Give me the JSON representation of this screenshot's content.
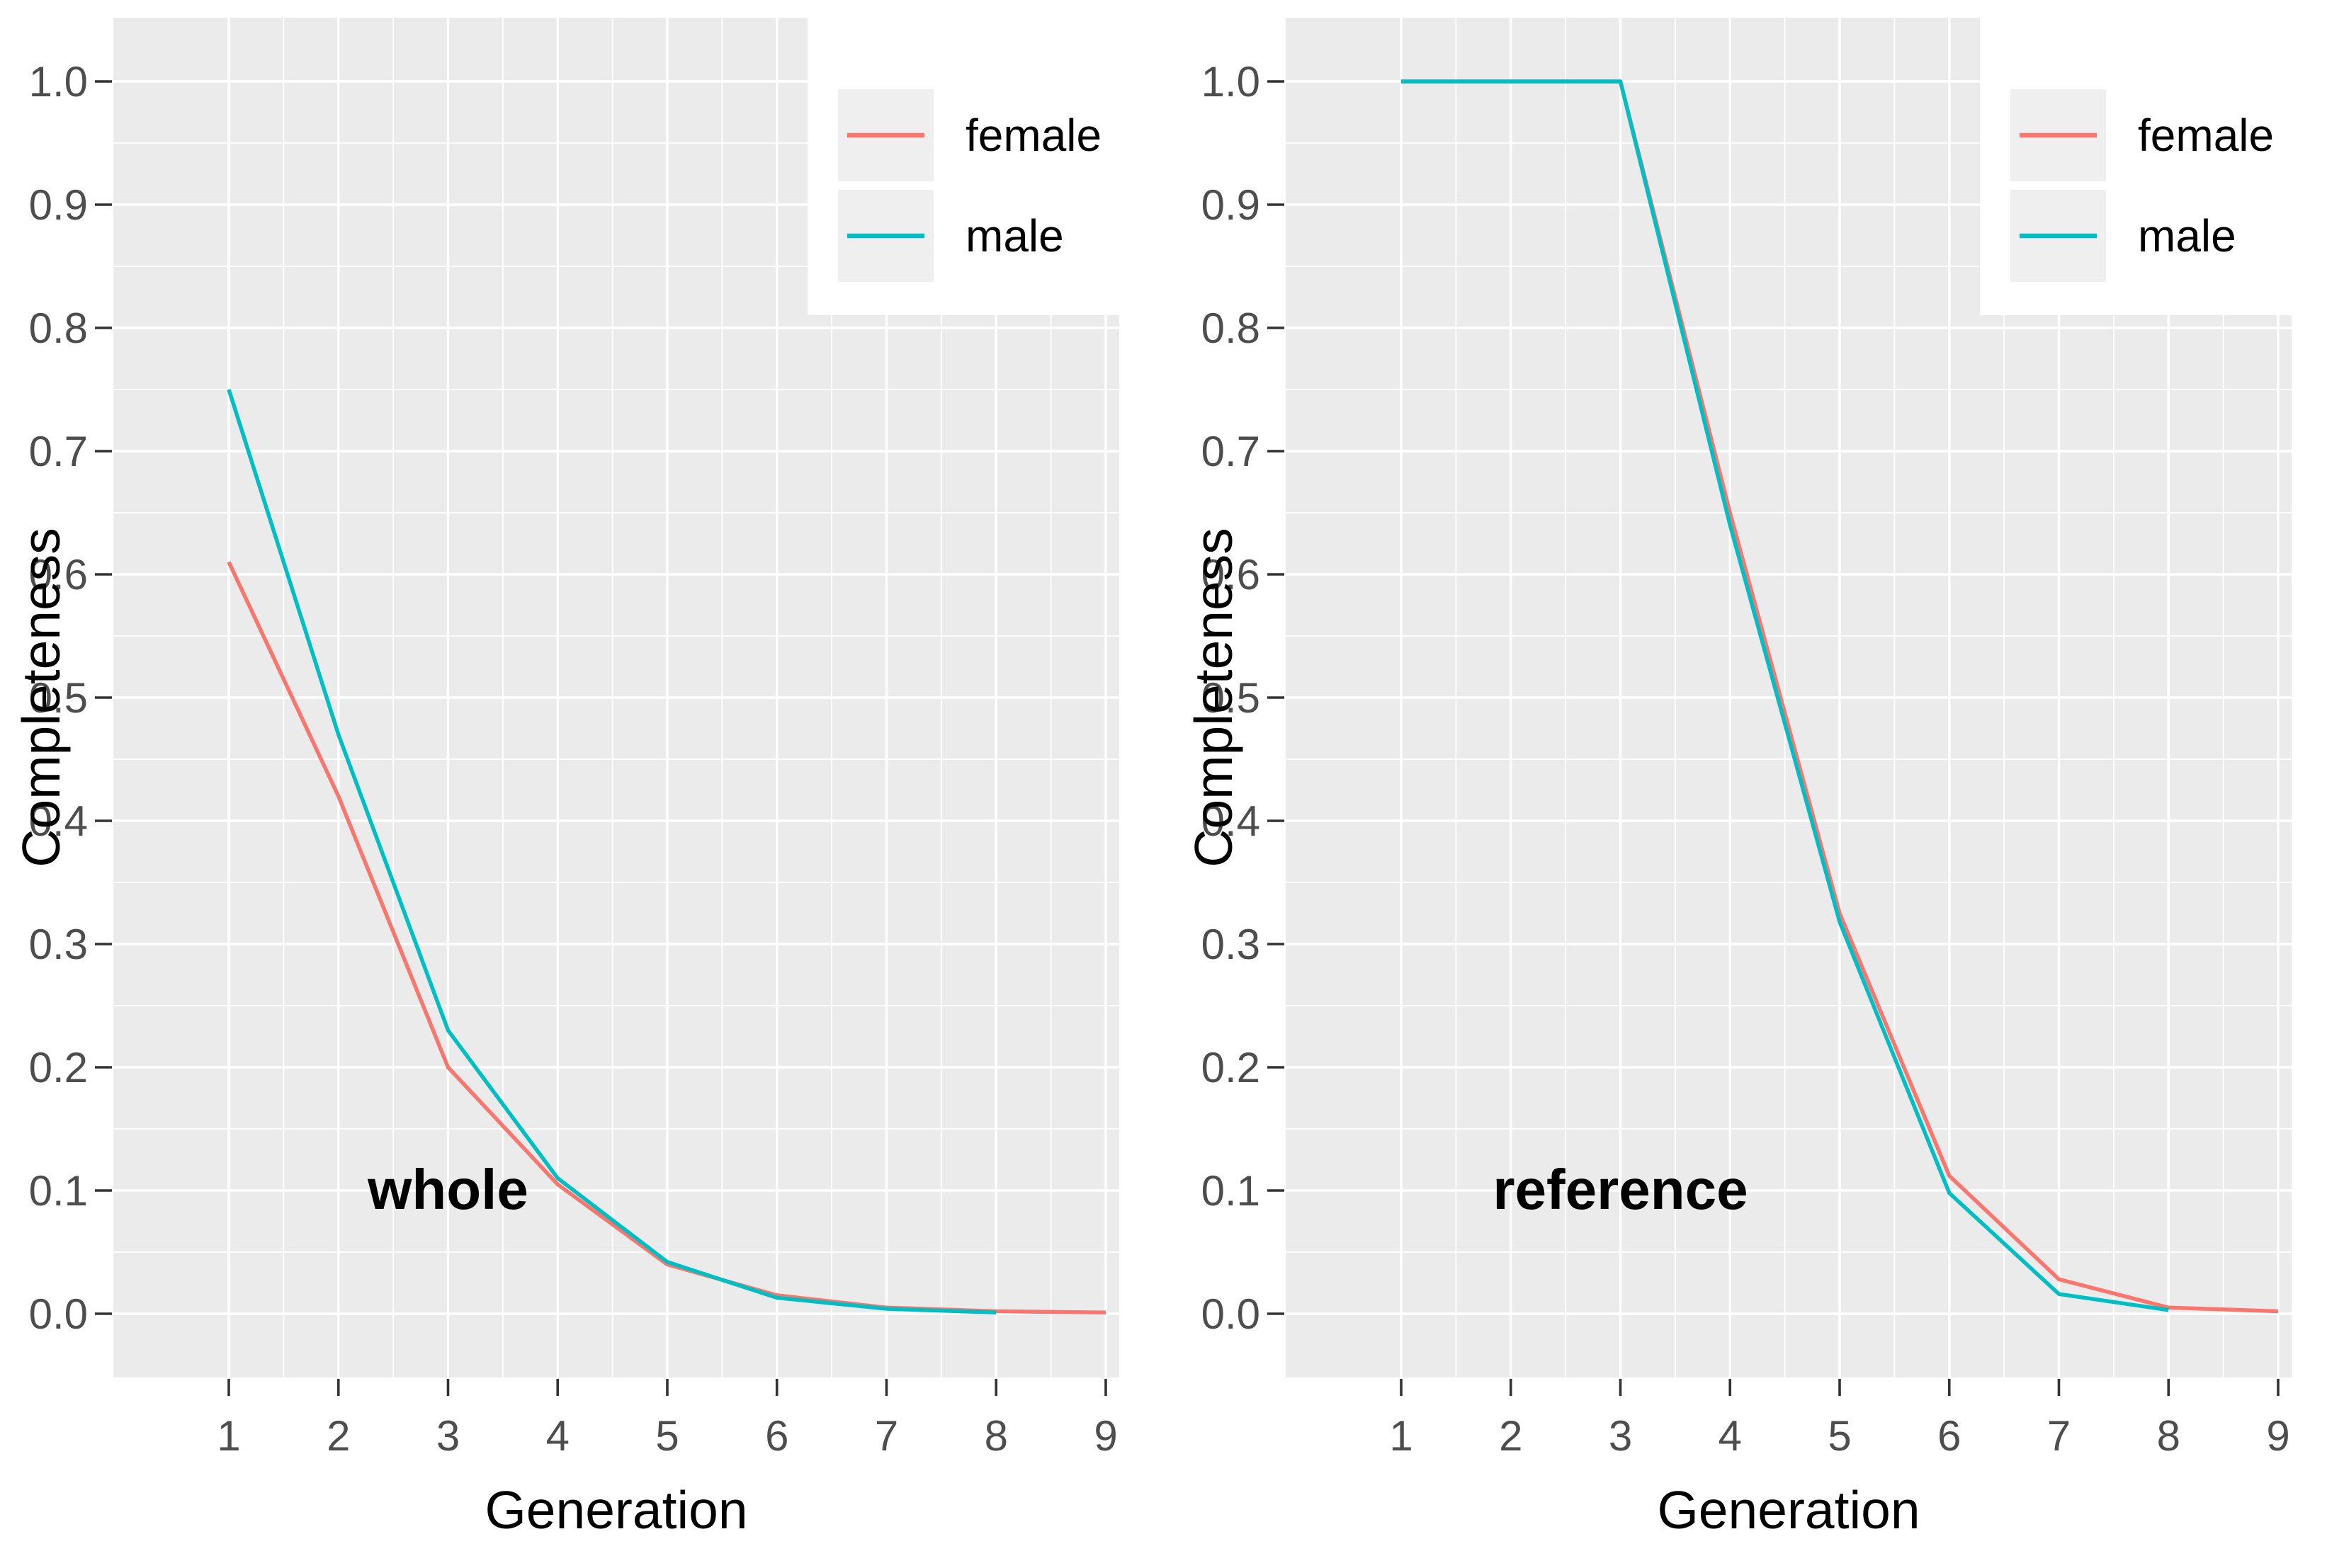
{
  "figure": {
    "background": "#FFFFFF",
    "panel_background": "#EBEBEB",
    "grid_color": "#FFFFFF",
    "axis_tick_color": "#333333",
    "tick_label_color": "#4D4D4D",
    "axis_title_color": "#000000",
    "panel_tag_color": "#000000",
    "legend_background": "#FFFFFF",
    "legend_key_background": "#EFEFEF",
    "female_color": "#F8766D",
    "male_color": "#00BFC4"
  },
  "chart_data": [
    {
      "type": "line",
      "panel_tag": "whole",
      "xlabel": "Generation",
      "ylabel": "Completeness",
      "x": [
        1,
        2,
        3,
        4,
        5,
        6,
        7,
        8,
        9
      ],
      "x_tick_labels": [
        "1",
        "2",
        "3",
        "4",
        "5",
        "6",
        "7",
        "8",
        "9"
      ],
      "y_ticks": [
        0.0,
        0.1,
        0.2,
        0.3,
        0.4,
        0.5,
        0.6,
        0.7,
        0.8,
        0.9,
        1.0
      ],
      "y_tick_labels": [
        "0.0",
        "0.1",
        "0.2",
        "0.3",
        "0.4",
        "0.5",
        "0.6",
        "0.7",
        "0.8",
        "0.9",
        "1.0"
      ],
      "xlim": [
        0.6,
        9.4
      ],
      "ylim": [
        -0.05,
        1.05
      ],
      "grid": "major and minor, white on gray panel",
      "legend": {
        "position": "top-right-inside",
        "entries": [
          {
            "label": "female",
            "color": "#F8766D"
          },
          {
            "label": "male",
            "color": "#00BFC4"
          }
        ]
      },
      "series": [
        {
          "name": "female",
          "color": "#F8766D",
          "values": [
            0.61,
            0.42,
            0.2,
            0.105,
            0.04,
            0.015,
            0.005,
            0.002,
            0.001
          ]
        },
        {
          "name": "male",
          "color": "#00BFC4",
          "values": [
            0.75,
            0.47,
            0.23,
            0.11,
            0.042,
            0.013,
            0.004,
            0.001
          ]
        }
      ]
    },
    {
      "type": "line",
      "panel_tag": "reference",
      "xlabel": "Generation",
      "ylabel": "Completeness",
      "x": [
        1,
        2,
        3,
        4,
        5,
        6,
        7,
        8,
        9
      ],
      "x_tick_labels": [
        "1",
        "2",
        "3",
        "4",
        "5",
        "6",
        "7",
        "8",
        "9"
      ],
      "y_ticks": [
        0.0,
        0.1,
        0.2,
        0.3,
        0.4,
        0.5,
        0.6,
        0.7,
        0.8,
        0.9,
        1.0
      ],
      "y_tick_labels": [
        "0.0",
        "0.1",
        "0.2",
        "0.3",
        "0.4",
        "0.5",
        "0.6",
        "0.7",
        "0.8",
        "0.9",
        "1.0"
      ],
      "xlim": [
        0.6,
        9.4
      ],
      "ylim": [
        -0.05,
        1.05
      ],
      "grid": "major and minor, white on gray panel",
      "legend": {
        "position": "top-right-inside",
        "entries": [
          {
            "label": "female",
            "color": "#F8766D"
          },
          {
            "label": "male",
            "color": "#00BFC4"
          }
        ]
      },
      "series": [
        {
          "name": "female",
          "color": "#F8766D",
          "values": [
            1.0,
            1.0,
            1.0,
            0.65,
            0.325,
            0.112,
            0.028,
            0.005,
            0.002
          ]
        },
        {
          "name": "male",
          "color": "#00BFC4",
          "values": [
            1.0,
            1.0,
            1.0,
            0.64,
            0.318,
            0.098,
            0.016,
            0.003
          ]
        }
      ]
    }
  ]
}
